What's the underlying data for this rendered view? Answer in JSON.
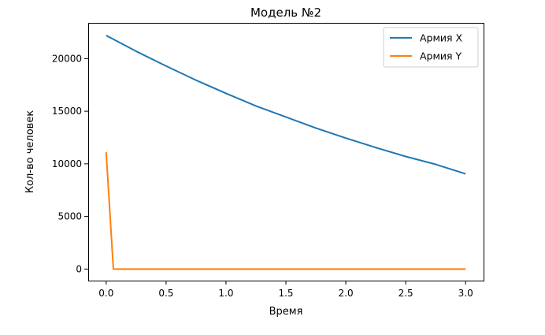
{
  "chart_data": {
    "type": "line",
    "title": "Модель №2",
    "xlabel": "Время",
    "ylabel": "Кол-во человек",
    "xlim": [
      -0.15,
      3.15
    ],
    "ylim": [
      -1100,
      23400
    ],
    "xticks": [
      0.0,
      0.5,
      1.0,
      1.5,
      2.0,
      2.5,
      3.0
    ],
    "xtick_labels": [
      "0.0",
      "0.5",
      "1.0",
      "1.5",
      "2.0",
      "2.5",
      "3.0"
    ],
    "yticks": [
      0,
      5000,
      10000,
      15000,
      20000
    ],
    "ytick_labels": [
      "0",
      "5000",
      "10000",
      "15000",
      "20000"
    ],
    "grid": false,
    "legend_position": "top-right",
    "series": [
      {
        "name": "Армия X",
        "color": "#1f77b4",
        "x": [
          0.0,
          0.25,
          0.5,
          0.75,
          1.0,
          1.25,
          1.5,
          1.75,
          2.0,
          2.25,
          2.5,
          2.75,
          3.0
        ],
        "y": [
          22200,
          20700,
          19300,
          17950,
          16700,
          15500,
          14450,
          13400,
          12450,
          11550,
          10700,
          9950,
          9050
        ]
      },
      {
        "name": "Армия Y",
        "color": "#ff7f0e",
        "x": [
          0.0,
          0.06,
          0.5,
          1.0,
          1.5,
          2.0,
          2.5,
          3.0
        ],
        "y": [
          11100,
          0,
          0,
          0,
          0,
          0,
          0,
          0
        ]
      }
    ]
  }
}
